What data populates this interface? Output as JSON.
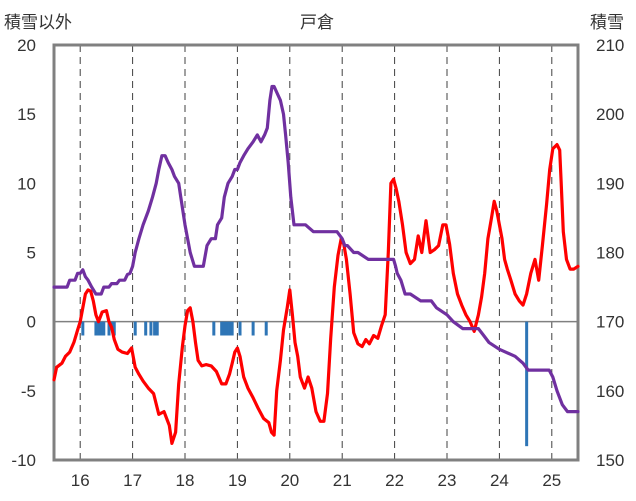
{
  "chart_data": {
    "type": "line",
    "title": "戸倉",
    "y_left_label": "積雪以外",
    "y_right_label": "積雪",
    "x_ticks": [
      "16",
      "17",
      "18",
      "19",
      "20",
      "21",
      "22",
      "23",
      "24",
      "25"
    ],
    "y_left_ticks": [
      "20",
      "15",
      "10",
      "5",
      "0",
      "-5",
      "-10"
    ],
    "y_right_ticks": [
      "210",
      "200",
      "190",
      "180",
      "170",
      "160",
      "150"
    ],
    "ylim_left": [
      -10,
      20
    ],
    "ylim_right": [
      150,
      210
    ],
    "xlim": [
      15.5,
      25.5
    ],
    "grid": "vertical dashed",
    "colors": {
      "temperature": "#ff0000",
      "snow": "#7030a0",
      "precip": "#2e75b6",
      "frame": "#808080"
    },
    "series": [
      {
        "axis": "left",
        "kind": "line",
        "points": [
          [
            15.5,
            -4.2
          ],
          [
            15.55,
            -3.3
          ],
          [
            15.65,
            -3.0
          ],
          [
            15.72,
            -2.5
          ],
          [
            15.8,
            -2.2
          ],
          [
            15.88,
            -1.5
          ],
          [
            15.95,
            -0.6
          ],
          [
            16.0,
            0.0
          ],
          [
            16.05,
            1.0
          ],
          [
            16.1,
            2.0
          ],
          [
            16.15,
            2.3
          ],
          [
            16.2,
            2.2
          ],
          [
            16.25,
            1.5
          ],
          [
            16.3,
            0.5
          ],
          [
            16.35,
            0.0
          ],
          [
            16.42,
            0.7
          ],
          [
            16.5,
            0.8
          ],
          [
            16.55,
            0.0
          ],
          [
            16.6,
            -0.4
          ],
          [
            16.65,
            -1.3
          ],
          [
            16.72,
            -2.0
          ],
          [
            16.8,
            -2.2
          ],
          [
            16.9,
            -2.3
          ],
          [
            16.98,
            -1.9
          ],
          [
            17.05,
            -3.3
          ],
          [
            17.12,
            -3.8
          ],
          [
            17.2,
            -4.3
          ],
          [
            17.3,
            -4.8
          ],
          [
            17.4,
            -5.2
          ],
          [
            17.5,
            -6.7
          ],
          [
            17.6,
            -6.5
          ],
          [
            17.7,
            -7.5
          ],
          [
            17.75,
            -8.8
          ],
          [
            17.82,
            -8.0
          ],
          [
            17.88,
            -4.5
          ],
          [
            17.95,
            -1.8
          ],
          [
            18.0,
            -0.3
          ],
          [
            18.05,
            0.8
          ],
          [
            18.1,
            1.0
          ],
          [
            18.15,
            0.0
          ],
          [
            18.2,
            -1.5
          ],
          [
            18.25,
            -2.8
          ],
          [
            18.32,
            -3.2
          ],
          [
            18.4,
            -3.1
          ],
          [
            18.5,
            -3.2
          ],
          [
            18.6,
            -3.6
          ],
          [
            18.7,
            -4.5
          ],
          [
            18.78,
            -4.5
          ],
          [
            18.85,
            -3.8
          ],
          [
            18.9,
            -3.0
          ],
          [
            18.95,
            -2.2
          ],
          [
            19.0,
            -1.9
          ],
          [
            19.05,
            -2.5
          ],
          [
            19.12,
            -4.0
          ],
          [
            19.2,
            -4.8
          ],
          [
            19.3,
            -5.5
          ],
          [
            19.4,
            -6.3
          ],
          [
            19.5,
            -7.0
          ],
          [
            19.6,
            -7.3
          ],
          [
            19.65,
            -8.0
          ],
          [
            19.7,
            -8.2
          ],
          [
            19.75,
            -5.0
          ],
          [
            19.82,
            -2.8
          ],
          [
            19.88,
            -0.6
          ],
          [
            19.95,
            1.0
          ],
          [
            20.0,
            2.3
          ],
          [
            20.05,
            0.5
          ],
          [
            20.1,
            -1.5
          ],
          [
            20.15,
            -2.5
          ],
          [
            20.2,
            -4.0
          ],
          [
            20.28,
            -4.8
          ],
          [
            20.35,
            -4.0
          ],
          [
            20.42,
            -4.8
          ],
          [
            20.5,
            -6.5
          ],
          [
            20.58,
            -7.2
          ],
          [
            20.65,
            -7.2
          ],
          [
            20.72,
            -5.2
          ],
          [
            20.78,
            -1.2
          ],
          [
            20.85,
            2.5
          ],
          [
            20.92,
            4.8
          ],
          [
            20.98,
            6.0
          ],
          [
            21.03,
            5.6
          ],
          [
            21.08,
            4.5
          ],
          [
            21.15,
            2.0
          ],
          [
            21.22,
            -0.8
          ],
          [
            21.3,
            -1.6
          ],
          [
            21.38,
            -1.8
          ],
          [
            21.45,
            -1.3
          ],
          [
            21.52,
            -1.6
          ],
          [
            21.6,
            -1.0
          ],
          [
            21.68,
            -1.2
          ],
          [
            21.75,
            -0.3
          ],
          [
            21.82,
            0.5
          ],
          [
            21.88,
            5.0
          ],
          [
            21.93,
            10.0
          ],
          [
            21.98,
            10.3
          ],
          [
            22.03,
            9.6
          ],
          [
            22.08,
            8.7
          ],
          [
            22.15,
            7.0
          ],
          [
            22.22,
            5.0
          ],
          [
            22.3,
            4.2
          ],
          [
            22.38,
            4.5
          ],
          [
            22.45,
            6.2
          ],
          [
            22.52,
            5.0
          ],
          [
            22.6,
            7.3
          ],
          [
            22.68,
            5.0
          ],
          [
            22.76,
            5.2
          ],
          [
            22.84,
            5.5
          ],
          [
            22.92,
            7.0
          ],
          [
            22.98,
            7.0
          ],
          [
            23.05,
            5.6
          ],
          [
            23.12,
            3.5
          ],
          [
            23.2,
            2.0
          ],
          [
            23.28,
            1.2
          ],
          [
            23.36,
            0.5
          ],
          [
            23.44,
            0.0
          ],
          [
            23.52,
            -0.7
          ],
          [
            23.6,
            0.5
          ],
          [
            23.66,
            1.8
          ],
          [
            23.72,
            3.5
          ],
          [
            23.78,
            6.0
          ],
          [
            23.85,
            7.5
          ],
          [
            23.9,
            8.7
          ],
          [
            23.95,
            8.0
          ],
          [
            24.0,
            7.0
          ],
          [
            24.05,
            6.0
          ],
          [
            24.1,
            4.5
          ],
          [
            24.15,
            3.8
          ],
          [
            24.22,
            3.0
          ],
          [
            24.3,
            2.0
          ],
          [
            24.38,
            1.5
          ],
          [
            24.45,
            1.2
          ],
          [
            24.52,
            2.0
          ],
          [
            24.6,
            3.5
          ],
          [
            24.68,
            4.5
          ],
          [
            24.75,
            3.0
          ],
          [
            24.82,
            5.5
          ],
          [
            24.9,
            8.5
          ],
          [
            24.96,
            11.0
          ],
          [
            25.02,
            12.5
          ],
          [
            25.1,
            12.8
          ],
          [
            25.15,
            12.4
          ],
          [
            25.18,
            10.0
          ],
          [
            25.22,
            6.5
          ],
          [
            25.28,
            4.5
          ],
          [
            25.35,
            3.8
          ],
          [
            25.42,
            3.8
          ],
          [
            25.5,
            4.0
          ]
        ]
      },
      {
        "axis": "right",
        "kind": "line",
        "points": [
          [
            15.5,
            175
          ],
          [
            15.75,
            175
          ],
          [
            15.8,
            176
          ],
          [
            15.9,
            176
          ],
          [
            15.95,
            177
          ],
          [
            16.0,
            177
          ],
          [
            16.05,
            177.5
          ],
          [
            16.1,
            176.5
          ],
          [
            16.15,
            176
          ],
          [
            16.22,
            175
          ],
          [
            16.3,
            174
          ],
          [
            16.4,
            174
          ],
          [
            16.45,
            175
          ],
          [
            16.55,
            175
          ],
          [
            16.6,
            175.5
          ],
          [
            16.7,
            175.5
          ],
          [
            16.75,
            176
          ],
          [
            16.85,
            176
          ],
          [
            16.9,
            176.8
          ],
          [
            16.95,
            177
          ],
          [
            17.0,
            178
          ],
          [
            17.05,
            180
          ],
          [
            17.12,
            182
          ],
          [
            17.2,
            184
          ],
          [
            17.3,
            186
          ],
          [
            17.38,
            188
          ],
          [
            17.45,
            190
          ],
          [
            17.5,
            192
          ],
          [
            17.56,
            194
          ],
          [
            17.62,
            194
          ],
          [
            17.68,
            193
          ],
          [
            17.75,
            192
          ],
          [
            17.8,
            191
          ],
          [
            17.88,
            190
          ],
          [
            17.92,
            188
          ],
          [
            18.0,
            184
          ],
          [
            18.05,
            182
          ],
          [
            18.1,
            180
          ],
          [
            18.18,
            178
          ],
          [
            18.25,
            178
          ],
          [
            18.35,
            178
          ],
          [
            18.42,
            181
          ],
          [
            18.5,
            182
          ],
          [
            18.58,
            182
          ],
          [
            18.62,
            184
          ],
          [
            18.7,
            185
          ],
          [
            18.75,
            188
          ],
          [
            18.82,
            190
          ],
          [
            18.9,
            191
          ],
          [
            18.95,
            192
          ],
          [
            19.0,
            192
          ],
          [
            19.05,
            193
          ],
          [
            19.12,
            194
          ],
          [
            19.2,
            195
          ],
          [
            19.3,
            196
          ],
          [
            19.38,
            197
          ],
          [
            19.45,
            196
          ],
          [
            19.52,
            197
          ],
          [
            19.57,
            198
          ],
          [
            19.62,
            202
          ],
          [
            19.66,
            204
          ],
          [
            19.7,
            204
          ],
          [
            19.76,
            203
          ],
          [
            19.82,
            202
          ],
          [
            19.88,
            200
          ],
          [
            19.92,
            197
          ],
          [
            19.97,
            193
          ],
          [
            20.02,
            188
          ],
          [
            20.08,
            184
          ],
          [
            20.15,
            184
          ],
          [
            20.3,
            184
          ],
          [
            20.45,
            183
          ],
          [
            20.9,
            183
          ],
          [
            21.0,
            182
          ],
          [
            21.05,
            181
          ],
          [
            21.1,
            181
          ],
          [
            21.22,
            180
          ],
          [
            21.3,
            180
          ],
          [
            21.5,
            179
          ],
          [
            21.98,
            179
          ],
          [
            22.02,
            178
          ],
          [
            22.05,
            177
          ],
          [
            22.12,
            176
          ],
          [
            22.2,
            174
          ],
          [
            22.3,
            174
          ],
          [
            22.5,
            173
          ],
          [
            22.7,
            173
          ],
          [
            22.8,
            172
          ],
          [
            23.0,
            171
          ],
          [
            23.12,
            170
          ],
          [
            23.3,
            169
          ],
          [
            23.6,
            169
          ],
          [
            23.7,
            168
          ],
          [
            23.8,
            167
          ],
          [
            24.0,
            166
          ],
          [
            24.3,
            165
          ],
          [
            24.45,
            164
          ],
          [
            24.55,
            163
          ],
          [
            24.95,
            163
          ],
          [
            25.02,
            162
          ],
          [
            25.1,
            160
          ],
          [
            25.2,
            158
          ],
          [
            25.3,
            157
          ],
          [
            25.5,
            157
          ]
        ]
      }
    ],
    "precip_bars": [
      [
        16.05,
        -1.0
      ],
      [
        16.3,
        -1.0
      ],
      [
        16.35,
        -1.0
      ],
      [
        16.4,
        -1.0
      ],
      [
        16.45,
        -1.0
      ],
      [
        16.55,
        -1.0
      ],
      [
        16.6,
        -0.6
      ],
      [
        16.65,
        -1.0
      ],
      [
        17.05,
        -1.0
      ],
      [
        17.25,
        -1.0
      ],
      [
        17.35,
        -1.0
      ],
      [
        17.42,
        -1.0
      ],
      [
        17.47,
        -1.0
      ],
      [
        18.55,
        -1.0
      ],
      [
        18.7,
        -1.0
      ],
      [
        18.75,
        -1.0
      ],
      [
        18.8,
        -1.0
      ],
      [
        18.85,
        -1.0
      ],
      [
        18.9,
        -1.0
      ],
      [
        19.05,
        -1.0
      ],
      [
        19.3,
        -1.0
      ],
      [
        19.55,
        -1.0
      ],
      [
        24.52,
        -9.0
      ]
    ]
  }
}
